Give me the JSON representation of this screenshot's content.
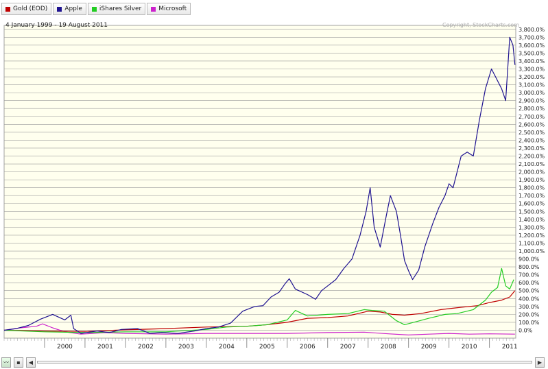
{
  "legend": [
    {
      "label": "Gold (EOD)",
      "color": "#c00000"
    },
    {
      "label": "Apple",
      "color": "#1e1290"
    },
    {
      "label": "iShares Silver",
      "color": "#22cc22"
    },
    {
      "label": "Microsoft",
      "color": "#cc22cc"
    }
  ],
  "date_range": "4 January 1999 - 19 August 2011",
  "copyright": "Copyright, StockCharts.com",
  "scroll": {
    "left_arrow": "◀",
    "right_arrow": "▶"
  },
  "chart_data": {
    "type": "line",
    "ylim": [
      -100,
      3850
    ],
    "y_ticks": [
      0,
      100,
      200,
      300,
      400,
      500,
      600,
      700,
      800,
      900,
      1000,
      1100,
      1200,
      1300,
      1400,
      1500,
      1600,
      1700,
      1800,
      1900,
      2000,
      2100,
      2200,
      2300,
      2400,
      2500,
      2600,
      2700,
      2800,
      2900,
      3000,
      3100,
      3200,
      3300,
      3400,
      3500,
      3600,
      3700,
      3800
    ],
    "y_tick_suffix": "%",
    "x_ticks": [
      "2000",
      "2001",
      "2002",
      "2003",
      "2004",
      "2005",
      "2006",
      "2007",
      "2008",
      "2009",
      "2010",
      "2011"
    ],
    "grid": true,
    "series": [
      {
        "name": "Apple",
        "color": "#1e1290",
        "points": [
          [
            1999.0,
            0
          ],
          [
            1999.3,
            20
          ],
          [
            1999.6,
            60
          ],
          [
            1999.9,
            140
          ],
          [
            2000.2,
            200
          ],
          [
            2000.5,
            130
          ],
          [
            2000.65,
            190
          ],
          [
            2000.72,
            20
          ],
          [
            2000.9,
            -40
          ],
          [
            2001.3,
            -10
          ],
          [
            2001.6,
            -30
          ],
          [
            2001.9,
            10
          ],
          [
            2002.3,
            20
          ],
          [
            2002.6,
            -40
          ],
          [
            2002.9,
            -30
          ],
          [
            2003.3,
            -40
          ],
          [
            2003.7,
            -10
          ],
          [
            2004.0,
            20
          ],
          [
            2004.3,
            40
          ],
          [
            2004.6,
            90
          ],
          [
            2004.9,
            240
          ],
          [
            2005.2,
            300
          ],
          [
            2005.4,
            310
          ],
          [
            2005.6,
            420
          ],
          [
            2005.8,
            480
          ],
          [
            2005.95,
            590
          ],
          [
            2006.05,
            650
          ],
          [
            2006.2,
            520
          ],
          [
            2006.5,
            450
          ],
          [
            2006.7,
            390
          ],
          [
            2006.85,
            500
          ],
          [
            2007.0,
            560
          ],
          [
            2007.2,
            640
          ],
          [
            2007.4,
            780
          ],
          [
            2007.6,
            900
          ],
          [
            2007.8,
            1200
          ],
          [
            2007.95,
            1500
          ],
          [
            2008.05,
            1800
          ],
          [
            2008.15,
            1300
          ],
          [
            2008.3,
            1050
          ],
          [
            2008.45,
            1450
          ],
          [
            2008.55,
            1700
          ],
          [
            2008.7,
            1500
          ],
          [
            2008.8,
            1200
          ],
          [
            2008.9,
            880
          ],
          [
            2009.0,
            750
          ],
          [
            2009.1,
            640
          ],
          [
            2009.25,
            760
          ],
          [
            2009.4,
            1050
          ],
          [
            2009.6,
            1350
          ],
          [
            2009.75,
            1550
          ],
          [
            2009.9,
            1700
          ],
          [
            2010.0,
            1850
          ],
          [
            2010.1,
            1800
          ],
          [
            2010.3,
            2200
          ],
          [
            2010.45,
            2250
          ],
          [
            2010.6,
            2200
          ],
          [
            2010.75,
            2650
          ],
          [
            2010.9,
            3050
          ],
          [
            2011.05,
            3300
          ],
          [
            2011.15,
            3200
          ],
          [
            2011.3,
            3050
          ],
          [
            2011.4,
            2900
          ],
          [
            2011.5,
            3700
          ],
          [
            2011.58,
            3600
          ],
          [
            2011.63,
            3350
          ]
        ]
      },
      {
        "name": "iShares Silver",
        "color": "#22cc22",
        "points": [
          [
            1999.0,
            0
          ],
          [
            2000.0,
            -20
          ],
          [
            2001.0,
            -30
          ],
          [
            2002.0,
            -20
          ],
          [
            2003.0,
            -20
          ],
          [
            2004.0,
            10
          ],
          [
            2004.5,
            40
          ],
          [
            2005.0,
            50
          ],
          [
            2005.5,
            70
          ],
          [
            2006.0,
            130
          ],
          [
            2006.2,
            250
          ],
          [
            2006.5,
            180
          ],
          [
            2007.0,
            200
          ],
          [
            2007.5,
            210
          ],
          [
            2007.9,
            260
          ],
          [
            2008.1,
            250
          ],
          [
            2008.4,
            240
          ],
          [
            2008.7,
            120
          ],
          [
            2008.9,
            70
          ],
          [
            2009.2,
            110
          ],
          [
            2009.5,
            150
          ],
          [
            2009.9,
            200
          ],
          [
            2010.2,
            210
          ],
          [
            2010.6,
            260
          ],
          [
            2010.9,
            380
          ],
          [
            2011.05,
            480
          ],
          [
            2011.2,
            540
          ],
          [
            2011.3,
            780
          ],
          [
            2011.4,
            560
          ],
          [
            2011.5,
            520
          ],
          [
            2011.6,
            640
          ]
        ]
      },
      {
        "name": "Gold (EOD)",
        "color": "#c00000",
        "points": [
          [
            1999.0,
            0
          ],
          [
            2000.0,
            -10
          ],
          [
            2001.0,
            -15
          ],
          [
            2002.0,
            5
          ],
          [
            2003.0,
            20
          ],
          [
            2004.0,
            40
          ],
          [
            2005.0,
            50
          ],
          [
            2005.5,
            70
          ],
          [
            2006.0,
            100
          ],
          [
            2006.5,
            150
          ],
          [
            2007.0,
            160
          ],
          [
            2007.5,
            180
          ],
          [
            2008.0,
            240
          ],
          [
            2008.3,
            230
          ],
          [
            2008.6,
            200
          ],
          [
            2008.9,
            190
          ],
          [
            2009.3,
            210
          ],
          [
            2009.8,
            260
          ],
          [
            2010.3,
            290
          ],
          [
            2010.7,
            310
          ],
          [
            2011.0,
            350
          ],
          [
            2011.3,
            380
          ],
          [
            2011.5,
            420
          ],
          [
            2011.63,
            500
          ]
        ]
      },
      {
        "name": "Microsoft",
        "color": "#cc22cc",
        "points": [
          [
            1999.0,
            0
          ],
          [
            1999.4,
            30
          ],
          [
            1999.8,
            50
          ],
          [
            1999.95,
            80
          ],
          [
            2000.2,
            30
          ],
          [
            2000.5,
            -20
          ],
          [
            2000.9,
            -50
          ],
          [
            2001.5,
            -30
          ],
          [
            2002.0,
            -40
          ],
          [
            2003.0,
            -50
          ],
          [
            2004.0,
            -40
          ],
          [
            2005.0,
            -40
          ],
          [
            2006.0,
            -40
          ],
          [
            2007.0,
            -30
          ],
          [
            2007.9,
            -25
          ],
          [
            2008.5,
            -45
          ],
          [
            2009.0,
            -60
          ],
          [
            2009.5,
            -50
          ],
          [
            2010.0,
            -40
          ],
          [
            2010.5,
            -50
          ],
          [
            2011.0,
            -45
          ],
          [
            2011.63,
            -50
          ]
        ]
      }
    ]
  }
}
